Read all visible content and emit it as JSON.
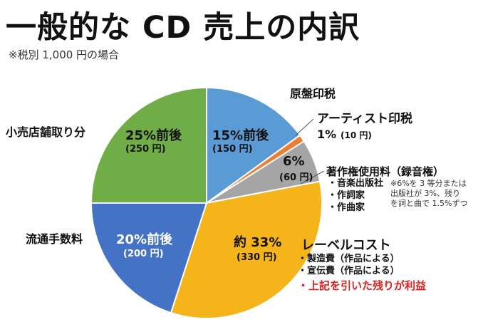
{
  "header": {
    "title": "一般的な CD 売上の内訳",
    "subtitle": "※税別 1,000 円の場合"
  },
  "chart_data": {
    "type": "pie",
    "slices": [
      {
        "pct": 15,
        "color": "#5b9bd5",
        "pct_label": "15%前後",
        "yen_label": "(150 円)",
        "category": "原盤印税"
      },
      {
        "pct": 1,
        "color": "#ed7d31",
        "pct_label": "1%",
        "yen_label": "(10 円)",
        "category": "アーティスト印税"
      },
      {
        "pct": 6,
        "color": "#a5a5a5",
        "pct_label": "6%",
        "yen_label": "(60 円)",
        "category": "著作権使用料（録音権）"
      },
      {
        "pct": 33,
        "color": "#f4b41a",
        "pct_label": "約 33%",
        "yen_label": "(330 円)",
        "category": "レーベルコスト"
      },
      {
        "pct": 20,
        "color": "#4472c4",
        "pct_label": "20%前後",
        "yen_label": "(200 円)",
        "category": "流通手数料"
      },
      {
        "pct": 25,
        "color": "#70ad47",
        "pct_label": "25%前後",
        "yen_label": "(250 円)",
        "category": "小売店舗取り分"
      }
    ],
    "copyright_items": [
      "・音楽出版社",
      "・作詞家",
      "・作曲家"
    ],
    "copyright_note": [
      "※6%を 3 等分または",
      "出版社が 3%、残り",
      "を詞と曲で 1.5%ずつ"
    ],
    "label_items": [
      "・製造費（作品による）",
      "・宣伝費（作品による）"
    ],
    "profit_note": "・上記を引いた残りが利益"
  }
}
